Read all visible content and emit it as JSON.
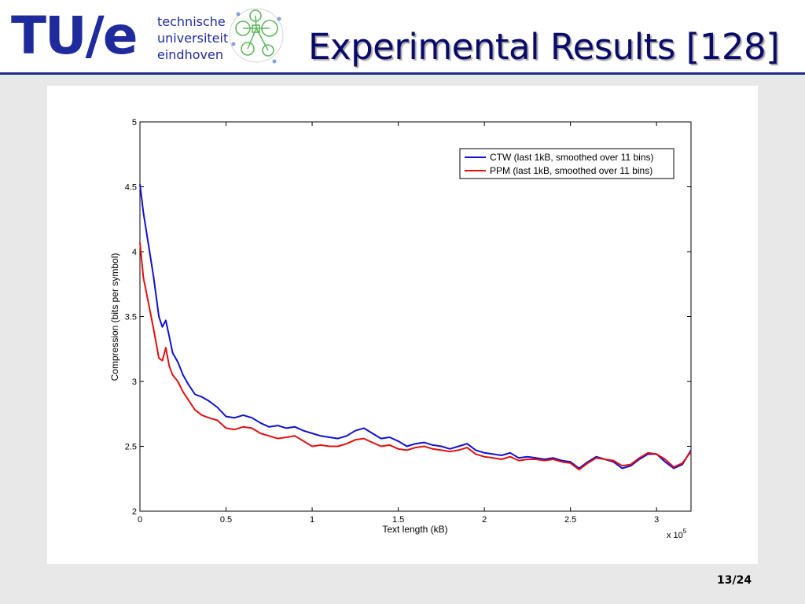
{
  "header": {
    "logo_text": "TU/e",
    "logo_words": [
      "technische",
      "universiteit",
      "eindhoven"
    ],
    "title": "Experimental Results [128]"
  },
  "footer": {
    "page": "13/24"
  },
  "colors": {
    "brand": "#1f2a9c",
    "ctw": "#1010d0",
    "ppm": "#e01010"
  },
  "chart_data": {
    "type": "line",
    "xlabel": "Text length (kB)",
    "ylabel": "Compression (bits per symbol)",
    "x_multiplier": "x 10",
    "x_multiplier_exp": "5",
    "xlim": [
      0,
      320000
    ],
    "ylim": [
      2,
      5
    ],
    "xticks": [
      0,
      50000,
      100000,
      150000,
      200000,
      250000,
      300000
    ],
    "xtick_labels": [
      "0",
      "0.5",
      "1",
      "1.5",
      "2",
      "2.5",
      "3"
    ],
    "yticks": [
      2,
      2.5,
      3,
      3.5,
      4,
      4.5,
      5
    ],
    "ytick_labels": [
      "2",
      "2.5",
      "3",
      "3.5",
      "4",
      "4.5",
      "5"
    ],
    "legend_position": "top-right",
    "series": [
      {
        "name": "CTW (last 1kB, smoothed over 11 bins)",
        "color": "#1010d0",
        "x": [
          0,
          2000,
          5000,
          8000,
          11000,
          13000,
          15000,
          17000,
          19000,
          22000,
          25000,
          28000,
          32000,
          36000,
          40000,
          45000,
          50000,
          55000,
          60000,
          65000,
          70000,
          75000,
          80000,
          85000,
          90000,
          95000,
          100000,
          105000,
          110000,
          115000,
          120000,
          125000,
          130000,
          135000,
          140000,
          145000,
          150000,
          155000,
          160000,
          165000,
          170000,
          175000,
          180000,
          185000,
          190000,
          195000,
          200000,
          205000,
          210000,
          215000,
          220000,
          225000,
          230000,
          235000,
          240000,
          245000,
          250000,
          255000,
          260000,
          265000,
          270000,
          275000,
          280000,
          285000,
          290000,
          295000,
          300000,
          305000,
          310000,
          315000,
          320000
        ],
        "y": [
          4.52,
          4.3,
          4.05,
          3.8,
          3.5,
          3.42,
          3.47,
          3.35,
          3.22,
          3.15,
          3.05,
          2.98,
          2.9,
          2.88,
          2.85,
          2.8,
          2.73,
          2.72,
          2.74,
          2.72,
          2.68,
          2.65,
          2.66,
          2.64,
          2.65,
          2.62,
          2.6,
          2.58,
          2.57,
          2.56,
          2.58,
          2.62,
          2.64,
          2.6,
          2.56,
          2.57,
          2.54,
          2.5,
          2.52,
          2.53,
          2.51,
          2.5,
          2.48,
          2.5,
          2.52,
          2.47,
          2.45,
          2.44,
          2.43,
          2.45,
          2.41,
          2.42,
          2.41,
          2.4,
          2.41,
          2.39,
          2.38,
          2.33,
          2.38,
          2.42,
          2.4,
          2.38,
          2.33,
          2.35,
          2.4,
          2.44,
          2.44,
          2.38,
          2.33,
          2.36,
          2.47
        ]
      },
      {
        "name": "PPM (last 1kB, smoothed over 11 bins)",
        "color": "#e01010",
        "x": [
          0,
          2000,
          5000,
          8000,
          11000,
          13000,
          15000,
          17000,
          19000,
          22000,
          25000,
          28000,
          32000,
          36000,
          40000,
          45000,
          50000,
          55000,
          60000,
          65000,
          70000,
          75000,
          80000,
          85000,
          90000,
          95000,
          100000,
          105000,
          110000,
          115000,
          120000,
          125000,
          130000,
          135000,
          140000,
          145000,
          150000,
          155000,
          160000,
          165000,
          170000,
          175000,
          180000,
          185000,
          190000,
          195000,
          200000,
          205000,
          210000,
          215000,
          220000,
          225000,
          230000,
          235000,
          240000,
          245000,
          250000,
          255000,
          260000,
          265000,
          270000,
          275000,
          280000,
          285000,
          290000,
          295000,
          300000,
          305000,
          310000,
          315000,
          320000
        ],
        "y": [
          4.07,
          3.8,
          3.6,
          3.4,
          3.18,
          3.16,
          3.26,
          3.12,
          3.05,
          3.0,
          2.92,
          2.86,
          2.78,
          2.74,
          2.72,
          2.7,
          2.64,
          2.63,
          2.65,
          2.64,
          2.6,
          2.58,
          2.56,
          2.57,
          2.58,
          2.54,
          2.5,
          2.51,
          2.5,
          2.5,
          2.52,
          2.55,
          2.56,
          2.53,
          2.5,
          2.51,
          2.48,
          2.47,
          2.49,
          2.5,
          2.48,
          2.47,
          2.46,
          2.47,
          2.49,
          2.44,
          2.42,
          2.41,
          2.4,
          2.42,
          2.39,
          2.4,
          2.4,
          2.39,
          2.4,
          2.38,
          2.37,
          2.32,
          2.37,
          2.41,
          2.4,
          2.39,
          2.35,
          2.36,
          2.41,
          2.45,
          2.44,
          2.4,
          2.34,
          2.37,
          2.46
        ]
      }
    ]
  }
}
